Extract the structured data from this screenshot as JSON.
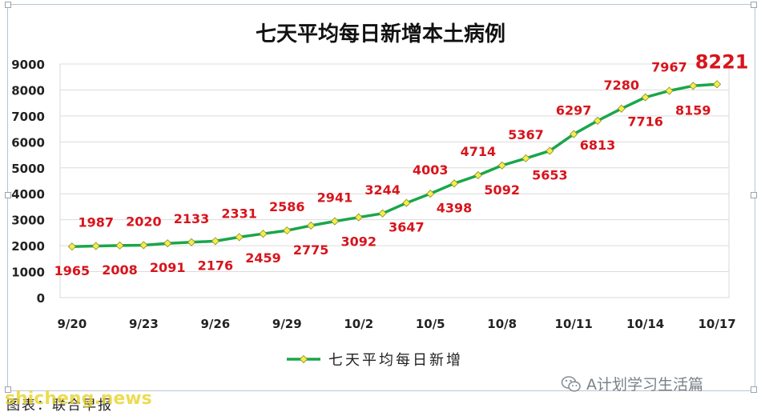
{
  "chart_data": {
    "type": "line",
    "title": "七天平均每日新增本土病例",
    "x": [
      "9/20",
      "9/21",
      "9/22",
      "9/23",
      "9/24",
      "9/25",
      "9/26",
      "9/27",
      "9/28",
      "9/29",
      "9/30",
      "10/1",
      "10/2",
      "10/3",
      "10/4",
      "10/5",
      "10/6",
      "10/7",
      "10/8",
      "10/9",
      "10/10",
      "10/11",
      "10/12",
      "10/13",
      "10/14",
      "10/15",
      "10/16",
      "10/17"
    ],
    "x_tick_labels": [
      "9/20",
      "9/23",
      "9/26",
      "9/29",
      "10/2",
      "10/5",
      "10/8",
      "10/11",
      "10/14",
      "10/17"
    ],
    "series": [
      {
        "name": "七天平均每日新增",
        "values": [
          1965,
          1987,
          2008,
          2020,
          2091,
          2133,
          2176,
          2331,
          2459,
          2586,
          2775,
          2941,
          3092,
          3244,
          3647,
          4003,
          4398,
          4714,
          5092,
          5367,
          5653,
          6297,
          6813,
          7280,
          7716,
          7967,
          8159,
          8221
        ],
        "data_labels": [
          "1965",
          "1987",
          "2008",
          "2020",
          "2091",
          "2133",
          "2176",
          "2331",
          "2459",
          "2586",
          "2775",
          "2941",
          "3092",
          "3244",
          "3647",
          "4003",
          "4398",
          "4714",
          "5092",
          "5367",
          "5653",
          "6297",
          "6813",
          "7280",
          "7716",
          "7967",
          "8159",
          "8221"
        ],
        "label_positions": [
          "below",
          "above",
          "below",
          "above",
          "below",
          "above",
          "below",
          "above",
          "below",
          "above",
          "below",
          "above",
          "below",
          "above",
          "below",
          "above",
          "below",
          "above",
          "below",
          "above",
          "below",
          "above",
          "below",
          "above",
          "below",
          "above",
          "below",
          "above"
        ],
        "color": "#1aa64a",
        "marker_color": "#f3ef4a"
      }
    ],
    "ylim": [
      0,
      9000
    ],
    "y_ticks": [
      "0",
      "1000",
      "2000",
      "3000",
      "4000",
      "5000",
      "6000",
      "7000",
      "8000",
      "9000"
    ],
    "grid": "horizontal",
    "legend_position": "bottom",
    "label_color": "#d8141c",
    "highlight_last_label": true
  },
  "watermark": "A计划学习生活篇",
  "source_text": "图表：联合早报",
  "site_text": "shicheng.news"
}
